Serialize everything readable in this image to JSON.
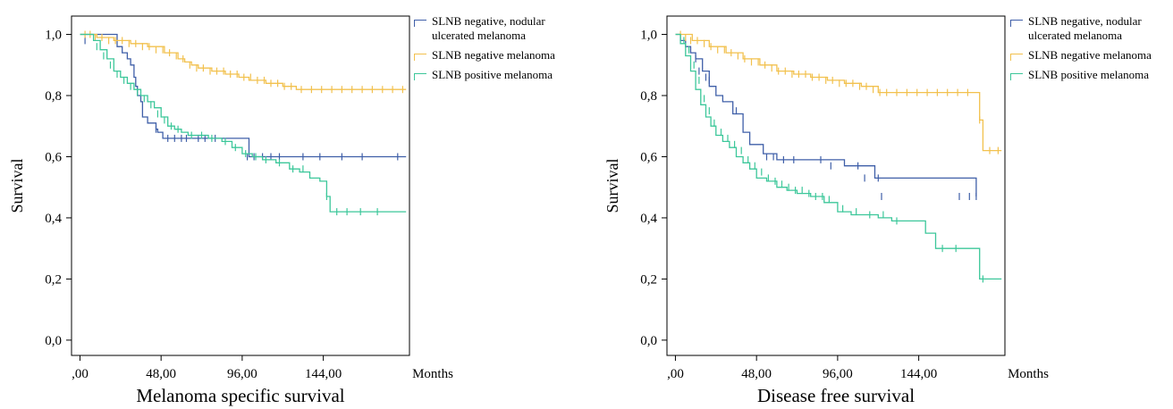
{
  "chart_data": [
    {
      "type": "line",
      "subtype": "kaplan-meier",
      "title": "Melanoma specific survival",
      "xlabel": "Months",
      "ylabel": "Survival",
      "xlim": [
        -5,
        195
      ],
      "ylim": [
        -0.05,
        1.06
      ],
      "xticks": [
        0,
        48,
        96,
        144
      ],
      "xtick_labels": [
        ",00",
        "48,00",
        "96,00",
        "144,00"
      ],
      "yticks": [
        0,
        0.2,
        0.4,
        0.6,
        0.8,
        1.0
      ],
      "ytick_labels": [
        "0,0",
        "0,2",
        "0,4",
        "0,6",
        "0,8",
        "1,0"
      ],
      "grid": false,
      "legend_position": "top-right, outside plot",
      "series": [
        {
          "name": "SLNB negative, nodular ulcerated melanoma",
          "color": "#3f5fa8",
          "x": [
            0,
            19,
            22,
            25,
            28,
            30,
            32,
            33,
            34,
            36,
            37,
            40,
            45,
            46,
            49,
            52,
            88,
            100,
            193
          ],
          "y": [
            1.0,
            1.0,
            0.96,
            0.94,
            0.92,
            0.9,
            0.86,
            0.83,
            0.8,
            0.78,
            0.73,
            0.71,
            0.69,
            0.68,
            0.66,
            0.66,
            0.66,
            0.6,
            0.6
          ],
          "censored_x": [
            3,
            45,
            52,
            56,
            60,
            63,
            70,
            74,
            80,
            99,
            103,
            108,
            113,
            118,
            132,
            142,
            155,
            167,
            188
          ],
          "censored_y": [
            0.98,
            0.69,
            0.66,
            0.66,
            0.66,
            0.66,
            0.66,
            0.66,
            0.66,
            0.6,
            0.6,
            0.6,
            0.6,
            0.6,
            0.6,
            0.6,
            0.6,
            0.6,
            0.6
          ]
        },
        {
          "name": "SLNB negative melanoma",
          "color": "#f2c14e",
          "x": [
            0,
            10,
            20,
            30,
            40,
            50,
            58,
            62,
            66,
            70,
            78,
            86,
            94,
            100,
            110,
            120,
            128,
            193
          ],
          "y": [
            1.0,
            0.99,
            0.98,
            0.97,
            0.96,
            0.94,
            0.92,
            0.91,
            0.9,
            0.89,
            0.88,
            0.87,
            0.86,
            0.85,
            0.84,
            0.83,
            0.82,
            0.82
          ],
          "censored_x": [
            3,
            6,
            9,
            13,
            17,
            21,
            25,
            29,
            33,
            37,
            41,
            45,
            49,
            53,
            57,
            61,
            65,
            69,
            73,
            77,
            81,
            85,
            89,
            93,
            97,
            101,
            105,
            109,
            113,
            117,
            121,
            125,
            131,
            137,
            143,
            149,
            155,
            161,
            167,
            173,
            179,
            185,
            191
          ],
          "censored_y": [
            1.0,
            1.0,
            0.99,
            0.99,
            0.98,
            0.98,
            0.98,
            0.97,
            0.97,
            0.96,
            0.96,
            0.95,
            0.95,
            0.94,
            0.93,
            0.92,
            0.9,
            0.89,
            0.89,
            0.88,
            0.88,
            0.88,
            0.87,
            0.87,
            0.86,
            0.86,
            0.85,
            0.85,
            0.84,
            0.84,
            0.83,
            0.83,
            0.82,
            0.82,
            0.82,
            0.82,
            0.82,
            0.82,
            0.82,
            0.82,
            0.82,
            0.82,
            0.82
          ]
        },
        {
          "name": "SLNB positive melanoma",
          "color": "#3cc79a",
          "x": [
            0,
            8,
            12,
            16,
            20,
            24,
            28,
            32,
            36,
            40,
            44,
            48,
            52,
            56,
            60,
            64,
            70,
            76,
            84,
            90,
            96,
            102,
            108,
            116,
            124,
            130,
            136,
            142,
            146,
            148,
            193
          ],
          "y": [
            1.0,
            0.98,
            0.95,
            0.92,
            0.88,
            0.86,
            0.84,
            0.82,
            0.8,
            0.78,
            0.76,
            0.73,
            0.7,
            0.69,
            0.68,
            0.67,
            0.67,
            0.66,
            0.65,
            0.63,
            0.61,
            0.6,
            0.59,
            0.58,
            0.56,
            0.55,
            0.53,
            0.52,
            0.47,
            0.42,
            0.42
          ],
          "censored_x": [
            10,
            14,
            18,
            22,
            26,
            30,
            34,
            38,
            42,
            46,
            50,
            54,
            58,
            66,
            72,
            78,
            86,
            92,
            98,
            104,
            110,
            118,
            126,
            132,
            146,
            152,
            158,
            166,
            176
          ],
          "censored_y": [
            0.96,
            0.93,
            0.9,
            0.87,
            0.85,
            0.83,
            0.81,
            0.79,
            0.77,
            0.74,
            0.72,
            0.7,
            0.69,
            0.67,
            0.67,
            0.66,
            0.65,
            0.63,
            0.61,
            0.6,
            0.59,
            0.58,
            0.56,
            0.56,
            0.47,
            0.42,
            0.42,
            0.42,
            0.42
          ]
        }
      ]
    },
    {
      "type": "line",
      "subtype": "kaplan-meier",
      "title": "Disease free survival",
      "xlabel": "Months",
      "ylabel": "Survival",
      "xlim": [
        -5,
        195
      ],
      "ylim": [
        -0.05,
        1.06
      ],
      "xticks": [
        0,
        48,
        96,
        144
      ],
      "xtick_labels": [
        ",00",
        "48,00",
        "96,00",
        "144,00"
      ],
      "yticks": [
        0,
        0.2,
        0.4,
        0.6,
        0.8,
        1.0
      ],
      "ytick_labels": [
        "0,0",
        "0,2",
        "0,4",
        "0,6",
        "0,8",
        "1,0"
      ],
      "grid": false,
      "legend_position": "top-right, outside plot",
      "series": [
        {
          "name": "SLNB negative, nodular ulcerated melanoma",
          "color": "#3f5fa8",
          "x": [
            0,
            3,
            6,
            9,
            12,
            16,
            20,
            24,
            28,
            34,
            40,
            44,
            52,
            60,
            90,
            100,
            118,
            178
          ],
          "y": [
            1.0,
            0.98,
            0.96,
            0.94,
            0.92,
            0.88,
            0.83,
            0.8,
            0.78,
            0.74,
            0.68,
            0.64,
            0.61,
            0.59,
            0.59,
            0.57,
            0.53,
            0.47
          ],
          "censored_x": [
            12,
            14,
            18,
            20,
            36,
            54,
            58,
            64,
            70,
            86,
            92,
            108,
            112,
            120,
            122,
            168,
            174,
            178
          ],
          "censored_y": [
            0.92,
            0.88,
            0.86,
            0.85,
            0.75,
            0.6,
            0.6,
            0.59,
            0.59,
            0.59,
            0.57,
            0.57,
            0.53,
            0.53,
            0.47,
            0.47,
            0.47,
            0.47
          ]
        },
        {
          "name": "SLNB negative melanoma",
          "color": "#f2c14e",
          "x": [
            0,
            10,
            20,
            30,
            40,
            50,
            60,
            70,
            80,
            90,
            100,
            110,
            120,
            130,
            175,
            180,
            182,
            193
          ],
          "y": [
            1.0,
            0.98,
            0.96,
            0.94,
            0.92,
            0.9,
            0.88,
            0.87,
            0.86,
            0.85,
            0.84,
            0.83,
            0.81,
            0.81,
            0.81,
            0.72,
            0.62,
            0.62
          ],
          "censored_x": [
            3,
            6,
            9,
            13,
            17,
            21,
            25,
            29,
            33,
            37,
            41,
            45,
            49,
            53,
            57,
            61,
            65,
            69,
            73,
            77,
            81,
            85,
            89,
            93,
            97,
            101,
            105,
            109,
            113,
            117,
            121,
            125,
            131,
            137,
            143,
            149,
            155,
            161,
            167,
            173,
            180,
            186,
            191
          ],
          "censored_y": [
            1.0,
            0.99,
            0.98,
            0.98,
            0.97,
            0.96,
            0.95,
            0.95,
            0.94,
            0.93,
            0.92,
            0.91,
            0.91,
            0.9,
            0.89,
            0.88,
            0.88,
            0.87,
            0.87,
            0.87,
            0.86,
            0.86,
            0.85,
            0.85,
            0.84,
            0.84,
            0.84,
            0.83,
            0.83,
            0.82,
            0.81,
            0.81,
            0.81,
            0.81,
            0.81,
            0.81,
            0.81,
            0.81,
            0.81,
            0.81,
            0.72,
            0.62,
            0.62
          ]
        },
        {
          "name": "SLNB positive melanoma",
          "color": "#3cc79a",
          "x": [
            0,
            3,
            6,
            9,
            12,
            15,
            18,
            21,
            24,
            28,
            32,
            36,
            40,
            44,
            48,
            54,
            60,
            66,
            72,
            80,
            88,
            96,
            104,
            112,
            120,
            128,
            136,
            148,
            154,
            170,
            180,
            193
          ],
          "y": [
            1.0,
            0.97,
            0.93,
            0.88,
            0.82,
            0.77,
            0.73,
            0.7,
            0.67,
            0.65,
            0.63,
            0.6,
            0.58,
            0.56,
            0.53,
            0.52,
            0.5,
            0.49,
            0.48,
            0.47,
            0.45,
            0.42,
            0.41,
            0.41,
            0.4,
            0.39,
            0.39,
            0.35,
            0.3,
            0.3,
            0.2,
            0.2
          ],
          "censored_x": [
            5,
            8,
            11,
            14,
            17,
            20,
            23,
            27,
            31,
            35,
            39,
            43,
            47,
            51,
            55,
            59,
            63,
            67,
            71,
            75,
            79,
            83,
            87,
            91,
            99,
            107,
            115,
            123,
            131,
            158,
            166,
            182
          ],
          "censored_y": [
            0.98,
            0.95,
            0.9,
            0.85,
            0.79,
            0.75,
            0.71,
            0.68,
            0.66,
            0.64,
            0.62,
            0.59,
            0.57,
            0.55,
            0.53,
            0.52,
            0.51,
            0.5,
            0.49,
            0.49,
            0.48,
            0.47,
            0.47,
            0.46,
            0.43,
            0.42,
            0.41,
            0.41,
            0.39,
            0.3,
            0.3,
            0.2
          ]
        }
      ]
    }
  ]
}
